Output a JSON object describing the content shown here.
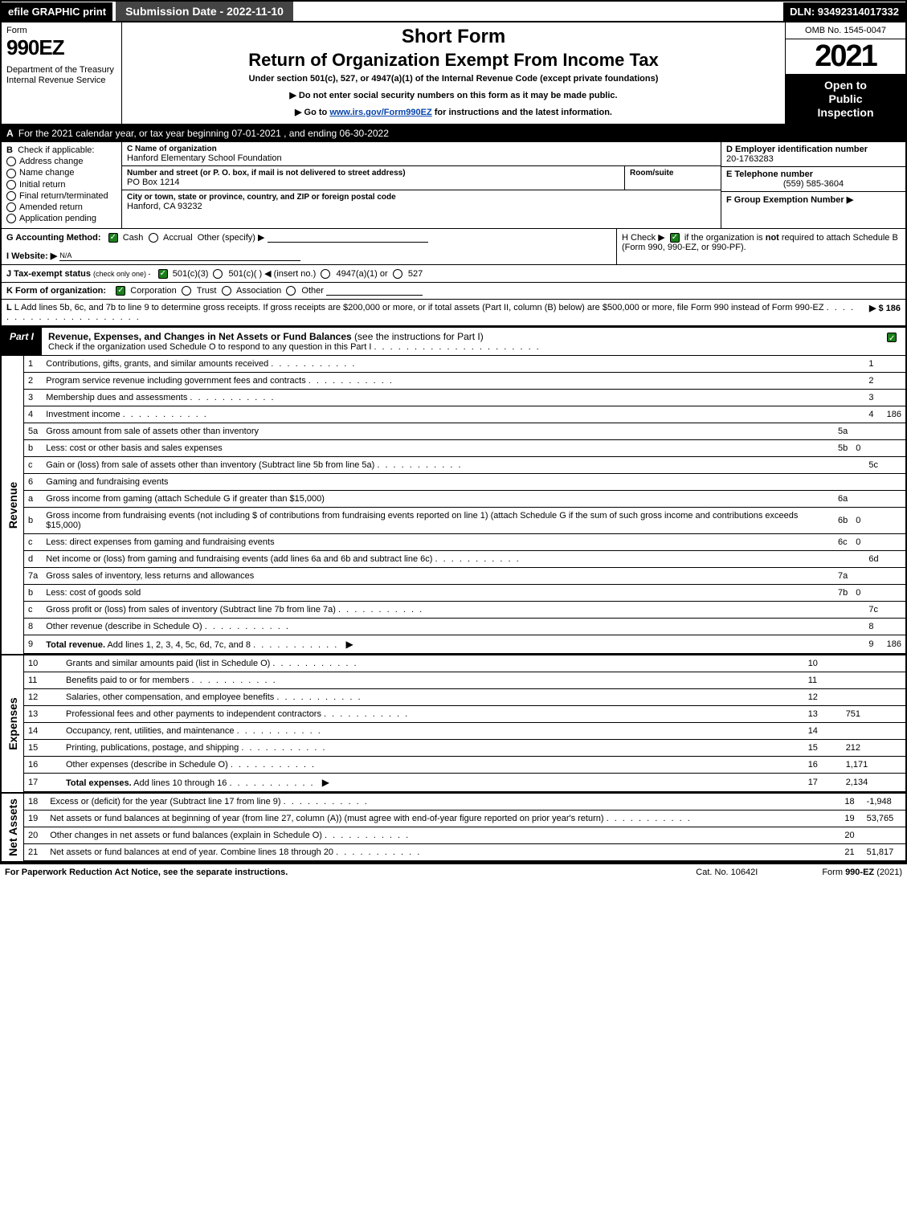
{
  "topbar": {
    "efile": "efile GRAPHIC print",
    "subdate": "Submission Date - 2022-11-10",
    "dln": "DLN: 93492314017332"
  },
  "header": {
    "form_word": "Form",
    "form_num": "990EZ",
    "dept": "Department of the Treasury\nInternal Revenue Service",
    "shortform": "Short Form",
    "rox": "Return of Organization Exempt From Income Tax",
    "subline": "Under section 501(c), 527, or 4947(a)(1) of the Internal Revenue Code (except private foundations)",
    "note1": "▶ Do not enter social security numbers on this form as it may be made public.",
    "note2_pre": "▶ Go to ",
    "note2_link": "www.irs.gov/Form990EZ",
    "note2_post": " for instructions and the latest information.",
    "omb": "OMB No. 1545-0047",
    "year": "2021",
    "inspect": "Open to\nPublic\nInspection"
  },
  "rowA": {
    "label": "A",
    "text": "For the 2021 calendar year, or tax year beginning 07-01-2021 , and ending 06-30-2022"
  },
  "sectionB": {
    "label": "B",
    "title": "Check if applicable:",
    "opts": [
      "Address change",
      "Name change",
      "Initial return",
      "Final return/terminated",
      "Amended return",
      "Application pending"
    ]
  },
  "sectionC": {
    "name_hdr": "C Name of organization",
    "name_val": "Hanford Elementary School Foundation",
    "addr_hdr": "Number and street (or P. O. box, if mail is not delivered to street address)",
    "room_hdr": "Room/suite",
    "addr_val": "PO Box 1214",
    "city_hdr": "City or town, state or province, country, and ZIP or foreign postal code",
    "city_val": "Hanford, CA  93232"
  },
  "sectionDE": {
    "d_label": "D Employer identification number",
    "d_val": "20-1763283",
    "e_label": "E Telephone number",
    "e_val": "(559) 585-3604",
    "f_label": "F Group Exemption Number  ▶"
  },
  "rowG": {
    "label": "G Accounting Method:",
    "cash": "Cash",
    "accrual": "Accrual",
    "other": "Other (specify) ▶"
  },
  "rowH": {
    "text_pre": "H   Check ▶ ",
    "text_post": " if the organization is not required to attach Schedule B (Form 990, 990-EZ, or 990-PF).",
    "text_bold": "not"
  },
  "rowI": {
    "label": "I Website: ▶",
    "val": "N/A"
  },
  "rowJ": {
    "label": "J Tax-exempt status",
    "sub": "(check only one) -",
    "o1": "501(c)(3)",
    "o2": "501(c)(   ) ◀ (insert no.)",
    "o3": "4947(a)(1) or",
    "o4": "527"
  },
  "rowK": {
    "label": "K Form of organization:",
    "opts": [
      "Corporation",
      "Trust",
      "Association",
      "Other"
    ],
    "checked": 0
  },
  "rowL": {
    "text": "L Add lines 5b, 6c, and 7b to line 9 to determine gross receipts. If gross receipts are $200,000 or more, or if total assets (Part II, column (B) below) are $500,000 or more, file Form 990 instead of Form 990-EZ",
    "amount": "▶ $ 186"
  },
  "partI": {
    "tag": "Part I",
    "title": "Revenue, Expenses, and Changes in Net Assets or Fund Balances",
    "paren": "(see the instructions for Part I)",
    "sub": "Check if the organization used Schedule O to respond to any question in this Part I"
  },
  "revenue": {
    "sideLabel": "Revenue",
    "rows": [
      {
        "n": "1",
        "text": "Contributions, gifts, grants, and similar amounts received",
        "col": "1",
        "val": ""
      },
      {
        "n": "2",
        "text": "Program service revenue including government fees and contracts",
        "col": "2",
        "val": ""
      },
      {
        "n": "3",
        "text": "Membership dues and assessments",
        "col": "3",
        "val": ""
      },
      {
        "n": "4",
        "text": "Investment income",
        "col": "4",
        "val": "186"
      },
      {
        "n": "5a",
        "text": "Gross amount from sale of assets other than inventory",
        "mid": "5a",
        "midv": "",
        "shade": true
      },
      {
        "n": "b",
        "text": "Less: cost or other basis and sales expenses",
        "mid": "5b",
        "midv": "0",
        "shade": true,
        "sub": true
      },
      {
        "n": "c",
        "text": "Gain or (loss) from sale of assets other than inventory (Subtract line 5b from line 5a)",
        "col": "5c",
        "val": "",
        "sub": true
      },
      {
        "n": "6",
        "text": "Gaming and fundraising events",
        "shade": true,
        "noval": true
      },
      {
        "n": "a",
        "text": "Gross income from gaming (attach Schedule G if greater than $15,000)",
        "mid": "6a",
        "midv": "",
        "shade": true,
        "sub": true
      },
      {
        "n": "b",
        "text": "Gross income from fundraising events (not including $                   of contributions from fundraising events reported on line 1) (attach Schedule G if the sum of such gross income and contributions exceeds $15,000)",
        "mid": "6b",
        "midv": "0",
        "shade": true,
        "sub": true,
        "tall": true
      },
      {
        "n": "c",
        "text": "Less: direct expenses from gaming and fundraising events",
        "mid": "6c",
        "midv": "0",
        "shade": true,
        "sub": true
      },
      {
        "n": "d",
        "text": "Net income or (loss) from gaming and fundraising events (add lines 6a and 6b and subtract line 6c)",
        "col": "6d",
        "val": "",
        "sub": true
      },
      {
        "n": "7a",
        "text": "Gross sales of inventory, less returns and allowances",
        "mid": "7a",
        "midv": "",
        "shade": true
      },
      {
        "n": "b",
        "text": "Less: cost of goods sold",
        "mid": "7b",
        "midv": "0",
        "shade": true,
        "sub": true
      },
      {
        "n": "c",
        "text": "Gross profit or (loss) from sales of inventory (Subtract line 7b from line 7a)",
        "col": "7c",
        "val": "",
        "sub": true
      },
      {
        "n": "8",
        "text": "Other revenue (describe in Schedule O)",
        "col": "8",
        "val": ""
      },
      {
        "n": "9",
        "text": "Total revenue. Add lines 1, 2, 3, 4, 5c, 6d, 7c, and 8",
        "col": "9",
        "val": "186",
        "bold": true,
        "arrow": true
      }
    ]
  },
  "expenses": {
    "sideLabel": "Expenses",
    "rows": [
      {
        "n": "10",
        "text": "Grants and similar amounts paid (list in Schedule O)",
        "col": "10",
        "val": ""
      },
      {
        "n": "11",
        "text": "Benefits paid to or for members",
        "col": "11",
        "val": ""
      },
      {
        "n": "12",
        "text": "Salaries, other compensation, and employee benefits",
        "col": "12",
        "val": ""
      },
      {
        "n": "13",
        "text": "Professional fees and other payments to independent contractors",
        "col": "13",
        "val": "751"
      },
      {
        "n": "14",
        "text": "Occupancy, rent, utilities, and maintenance",
        "col": "14",
        "val": ""
      },
      {
        "n": "15",
        "text": "Printing, publications, postage, and shipping",
        "col": "15",
        "val": "212"
      },
      {
        "n": "16",
        "text": "Other expenses (describe in Schedule O)",
        "col": "16",
        "val": "1,171"
      },
      {
        "n": "17",
        "text": "Total expenses. Add lines 10 through 16",
        "col": "17",
        "val": "2,134",
        "bold": true,
        "arrow": true
      }
    ]
  },
  "netassets": {
    "sideLabel": "Net Assets",
    "rows": [
      {
        "n": "18",
        "text": "Excess or (deficit) for the year (Subtract line 17 from line 9)",
        "col": "18",
        "val": "-1,948"
      },
      {
        "n": "19",
        "text": "Net assets or fund balances at beginning of year (from line 27, column (A)) (must agree with end-of-year figure reported on prior year's return)",
        "col": "19",
        "val": "53,765",
        "tall": true
      },
      {
        "n": "20",
        "text": "Other changes in net assets or fund balances (explain in Schedule O)",
        "col": "20",
        "val": ""
      },
      {
        "n": "21",
        "text": "Net assets or fund balances at end of year. Combine lines 18 through 20",
        "col": "21",
        "val": "51,817"
      }
    ]
  },
  "footer": {
    "left": "For Paperwork Reduction Act Notice, see the separate instructions.",
    "mid": "Cat. No. 10642I",
    "right_pre": "Form ",
    "right_bold": "990-EZ",
    "right_post": " (2021)"
  }
}
